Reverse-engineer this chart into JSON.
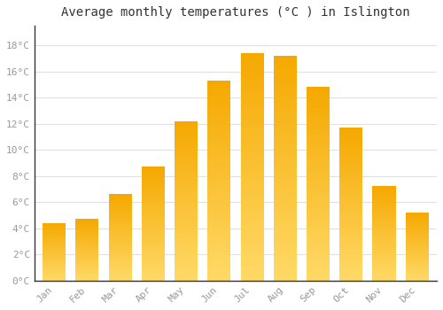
{
  "months": [
    "Jan",
    "Feb",
    "Mar",
    "Apr",
    "May",
    "Jun",
    "Jul",
    "Aug",
    "Sep",
    "Oct",
    "Nov",
    "Dec"
  ],
  "temperatures": [
    4.4,
    4.7,
    6.6,
    8.7,
    12.2,
    15.3,
    17.4,
    17.2,
    14.8,
    11.7,
    7.2,
    5.2
  ],
  "bar_color_top": "#F5A800",
  "bar_color_bottom": "#FFD966",
  "title": "Average monthly temperatures (°C ) in Islington",
  "title_fontsize": 10,
  "ytick_labels": [
    "0°C",
    "2°C",
    "4°C",
    "6°C",
    "8°C",
    "10°C",
    "12°C",
    "14°C",
    "16°C",
    "18°C"
  ],
  "ytick_values": [
    0,
    2,
    4,
    6,
    8,
    10,
    12,
    14,
    16,
    18
  ],
  "ylim": [
    0,
    19.5
  ],
  "tick_label_color": "#999999",
  "grid_color": "#e0e0e0",
  "bg_color": "#ffffff",
  "font_family": "monospace",
  "bar_width": 0.7,
  "gradient_steps": 100
}
